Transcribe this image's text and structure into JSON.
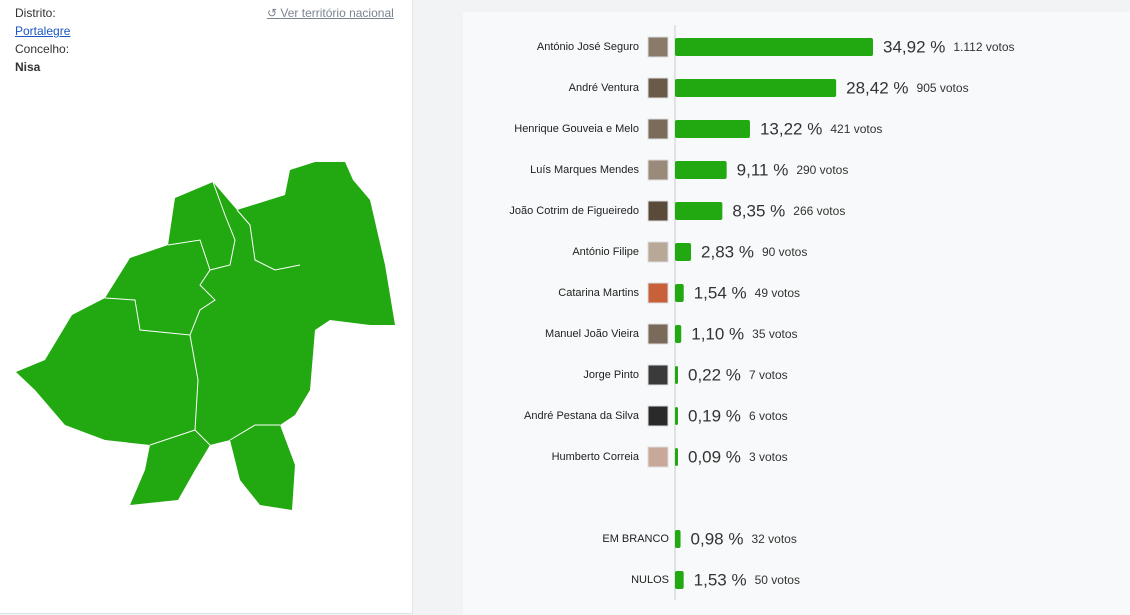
{
  "sidebar": {
    "district_label": "Distrito:",
    "district": "Portalegre",
    "county_label": "Concelho:",
    "county": "Nisa",
    "national_link": "Ver território nacional"
  },
  "chart_data": {
    "type": "bar",
    "orientation": "horizontal",
    "color": "#22a810",
    "categories": [
      "António José Seguro",
      "André Ventura",
      "Henrique Gouveia e Melo",
      "Luís Marques Mendes",
      "João Cotrim de Figueiredo",
      "António Filipe",
      "Catarina Martins",
      "Manuel João Vieira",
      "Jorge Pinto",
      "André Pestana da Silva",
      "Humberto Correia"
    ],
    "values": [
      34.92,
      28.42,
      13.22,
      9.11,
      8.35,
      2.83,
      1.54,
      1.1,
      0.22,
      0.19,
      0.09
    ],
    "value_labels": [
      "34,92 %",
      "28,42 %",
      "13,22 %",
      "9,11 %",
      "8,35 %",
      "2,83 %",
      "1,54 %",
      "1,10 %",
      "0,22 %",
      "0,19 %",
      "0,09 %"
    ],
    "vote_labels": [
      "1.112 votos",
      "905 votos",
      "421 votos",
      "290 votos",
      "266 votos",
      "90 votos",
      "49 votos",
      "35 votos",
      "7 votos",
      "6 votos",
      "3 votos"
    ]
  },
  "other_votes": {
    "categories": [
      "EM BRANCO",
      "NULOS"
    ],
    "values": [
      0.98,
      1.53
    ],
    "value_labels": [
      "0,98 %",
      "1,53 %"
    ],
    "vote_labels": [
      "32 votos",
      "50 votos"
    ]
  }
}
